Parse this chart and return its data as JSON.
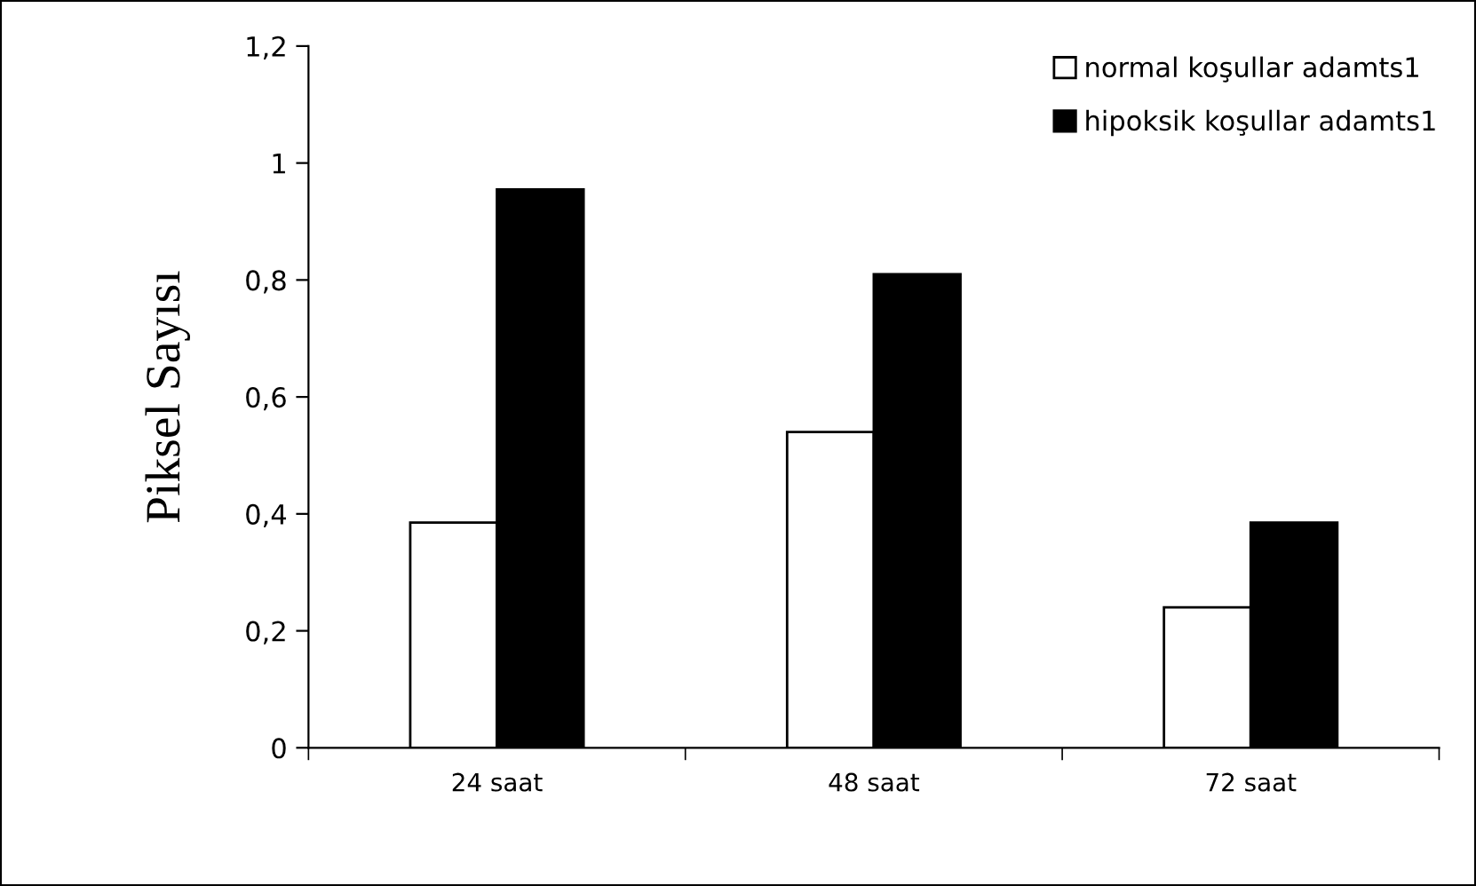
{
  "chart_data": {
    "type": "bar",
    "ylabel": "Piksel Sayısı",
    "categories": [
      "24 saat",
      "48 saat",
      "72 saat"
    ],
    "series": [
      {
        "name": "normal koşullar adamts1",
        "color": "#ffffff",
        "values": [
          0.385,
          0.54,
          0.24
        ]
      },
      {
        "name": "hipoksik koşullar adamts1",
        "color": "#000000",
        "values": [
          0.955,
          0.81,
          0.385
        ]
      }
    ],
    "ylim": [
      0,
      1.2
    ],
    "yticks": [
      0,
      {
        "value": 0.2,
        "label": "0,2"
      },
      {
        "value": 0.4,
        "label": "0,4"
      },
      {
        "value": 0.6,
        "label": "0,6"
      },
      {
        "value": 0.8,
        "label": "0,8"
      },
      1,
      {
        "value": 1.2,
        "label": "1,2"
      }
    ],
    "grid": false,
    "legend": "top right"
  }
}
